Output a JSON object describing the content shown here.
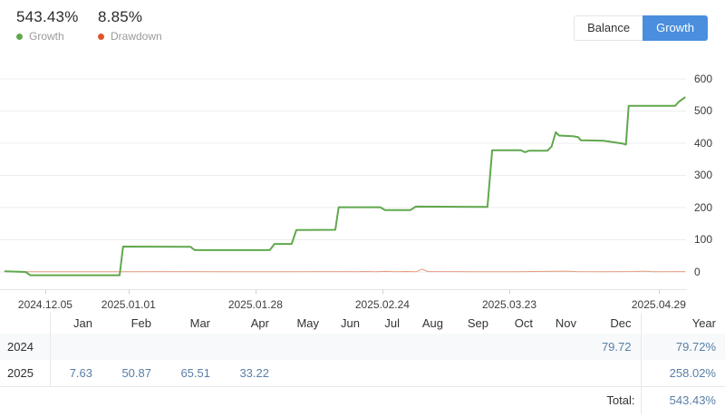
{
  "header": {
    "growth": {
      "value": "543.43%",
      "label": "Growth"
    },
    "drawdown": {
      "value": "8.85%",
      "label": "Drawdown"
    },
    "buttons": {
      "balance": "Balance",
      "growth": "Growth"
    }
  },
  "colors": {
    "growth_line": "#60a84d",
    "drawdown_line": "#e49b7c",
    "drawdown_dot": "#e0542c",
    "accent_blue": "#4a8edd",
    "value_blue": "#587ea6",
    "grid": "#ededed"
  },
  "chart_data": {
    "type": "line",
    "title": "",
    "xlabel": "",
    "ylabel": "",
    "grid": true,
    "legend_position": "top-left",
    "y_ticks": [
      0,
      100,
      200,
      300,
      400,
      500,
      600
    ],
    "ylim": [
      -20,
      620
    ],
    "x_tick_labels": [
      "2024.12.05",
      "2025.01.01",
      "2025.01.28",
      "2025.02.24",
      "2025.03.23",
      "2025.04.29"
    ],
    "x_tick_pos_pct": [
      6.1,
      18.3,
      36.9,
      55.5,
      74.1,
      96.0
    ],
    "series": [
      {
        "name": "Growth",
        "color": "#60a84d",
        "width": 2,
        "final_value_pct": 543.43,
        "points": [
          [
            0.1,
            2
          ],
          [
            3.2,
            0
          ],
          [
            3.9,
            -10
          ],
          [
            17.0,
            -10
          ],
          [
            17.5,
            79
          ],
          [
            27.4,
            78
          ],
          [
            28.0,
            68
          ],
          [
            39.0,
            68
          ],
          [
            39.7,
            87
          ],
          [
            42.2,
            87
          ],
          [
            42.9,
            130
          ],
          [
            48.6,
            131
          ],
          [
            49.1,
            201
          ],
          [
            55.2,
            201
          ],
          [
            55.9,
            192
          ],
          [
            59.6,
            192
          ],
          [
            60.4,
            203
          ],
          [
            70.9,
            202
          ],
          [
            71.6,
            378
          ],
          [
            75.8,
            378
          ],
          [
            76.4,
            372
          ],
          [
            77.0,
            377
          ],
          [
            79.7,
            377
          ],
          [
            80.3,
            390
          ],
          [
            80.9,
            434
          ],
          [
            81.4,
            424
          ],
          [
            83.4,
            422
          ],
          [
            84.2,
            419
          ],
          [
            84.6,
            409
          ],
          [
            87.9,
            408
          ],
          [
            90.7,
            399
          ],
          [
            91.2,
            396
          ],
          [
            91.6,
            516
          ],
          [
            98.4,
            516
          ],
          [
            98.9,
            528
          ],
          [
            99.9,
            543.43
          ]
        ]
      },
      {
        "name": "Drawdown",
        "color": "#e49b7c",
        "width": 1,
        "max_value_pct": 8.85,
        "points": [
          [
            0.1,
            1.5
          ],
          [
            3,
            0.5
          ],
          [
            17,
            0.5
          ],
          [
            25,
            1
          ],
          [
            40,
            0.5
          ],
          [
            50,
            1
          ],
          [
            51.5,
            0.5
          ],
          [
            53,
            1.5
          ],
          [
            54.5,
            0.8
          ],
          [
            56,
            1.8
          ],
          [
            57.5,
            0.8
          ],
          [
            59,
            1.5
          ],
          [
            60.5,
            0.8
          ],
          [
            61.3,
            8.85
          ],
          [
            62.2,
            1
          ],
          [
            68,
            0.8
          ],
          [
            75,
            0.5
          ],
          [
            82.5,
            2.5
          ],
          [
            84,
            1.2
          ],
          [
            88,
            0.8
          ],
          [
            92.5,
            1.5
          ],
          [
            93.8,
            2.5
          ],
          [
            95,
            0.8
          ],
          [
            99.9,
            1
          ]
        ]
      }
    ]
  },
  "table": {
    "columns": [
      "",
      "Jan",
      "Feb",
      "Mar",
      "Apr",
      "May",
      "Jun",
      "Jul",
      "Aug",
      "Sep",
      "Oct",
      "Nov",
      "Dec",
      "Year"
    ],
    "rows": [
      {
        "label": "2024",
        "cells": [
          "",
          "",
          "",
          "",
          "",
          "",
          "",
          "",
          "",
          "",
          "",
          "79.72"
        ],
        "year_total": "79.72%",
        "shaded": true
      },
      {
        "label": "2025",
        "cells": [
          "7.63",
          "50.87",
          "65.51",
          "33.22",
          "",
          "",
          "",
          "",
          "",
          "",
          "",
          ""
        ],
        "year_total": "258.02%",
        "shaded": false
      }
    ],
    "total_label": "Total:",
    "total_value": "543.43%"
  }
}
